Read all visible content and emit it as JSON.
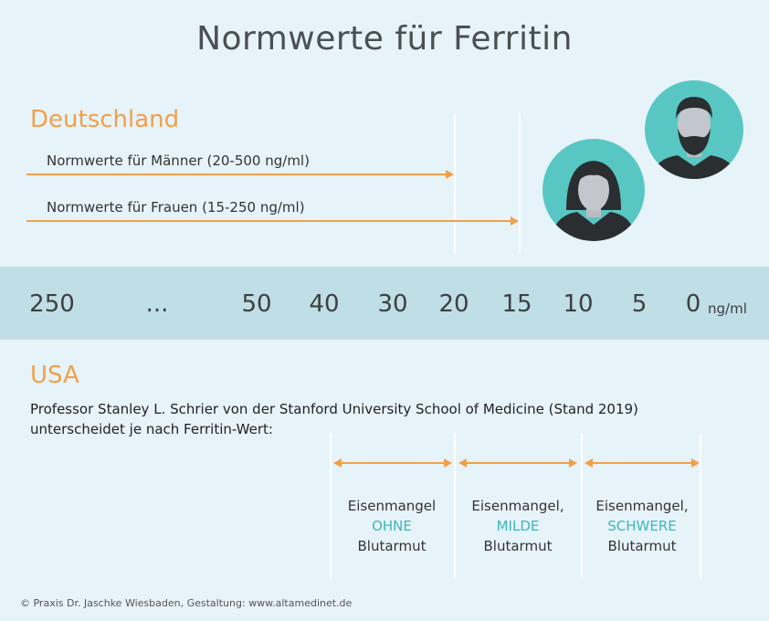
{
  "title": "Normwerte für Ferritin",
  "germany": {
    "heading": "Deutschland",
    "men_label": "Normwerte für Männer (20-500 ng/ml)",
    "women_label": "Normwerte für Frauen (15-250 ng/ml)"
  },
  "scale": {
    "ticks": [
      "250",
      "...",
      "50",
      "40",
      "30",
      "20",
      "15",
      "10",
      "5",
      "0"
    ],
    "unit": "ng/ml"
  },
  "usa": {
    "heading": "USA",
    "description": "Professor Stanley L. Schrier von der Stanford University School of Medicine (Stand 2019) unterscheidet je nach Ferritin-Wert:",
    "categories": [
      {
        "line1": "Eisenmangel",
        "severity": "OHNE",
        "line3": "Blutarmut"
      },
      {
        "line1": "Eisenmangel,",
        "severity": "MILDE",
        "line3": "Blutarmut"
      },
      {
        "line1": "Eisenmangel,",
        "severity": "SCHWERE",
        "line3": "Blutarmut"
      }
    ]
  },
  "footer": "© Praxis Dr. Jaschke Wiesbaden, Gestaltung: www.altamedinet.de",
  "colors": {
    "background": "#e6f3f9",
    "accent_orange": "#f0a04b",
    "scale_band": "#bfdee5",
    "teal": "#58c7c3",
    "severity_text": "#3cb8bb"
  },
  "icons": [
    "woman-avatar-icon",
    "man-avatar-icon"
  ]
}
